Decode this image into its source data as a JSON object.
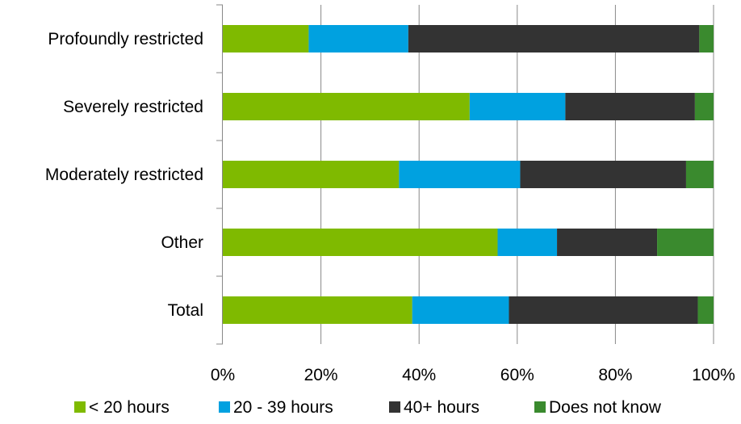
{
  "chart_data": {
    "type": "bar",
    "orientation": "horizontal",
    "stacked": "percent",
    "categories": [
      "Profoundly restricted",
      "Severely restricted",
      "Moderately restricted",
      "Other",
      "Total"
    ],
    "series": [
      {
        "name": "< 20 hours",
        "color": "#7fba00",
        "values": [
          17.5,
          50.3,
          35.9,
          56.0,
          38.6
        ]
      },
      {
        "name": "20 - 39 hours",
        "color": "#00a1e0",
        "values": [
          20.3,
          19.5,
          24.7,
          12.1,
          19.7
        ]
      },
      {
        "name": "40+ hours",
        "color": "#333333",
        "values": [
          59.3,
          26.4,
          33.8,
          20.4,
          38.5
        ]
      },
      {
        "name": "Does not know",
        "color": "#3a8a2e",
        "values": [
          2.9,
          3.8,
          5.6,
          11.5,
          3.2
        ]
      }
    ],
    "x_ticks": [
      "0%",
      "20%",
      "40%",
      "60%",
      "80%",
      "100%"
    ],
    "xlim": [
      0,
      100
    ],
    "grid": "vertical",
    "legend_position": "bottom",
    "title": "",
    "xlabel": "",
    "ylabel": ""
  }
}
